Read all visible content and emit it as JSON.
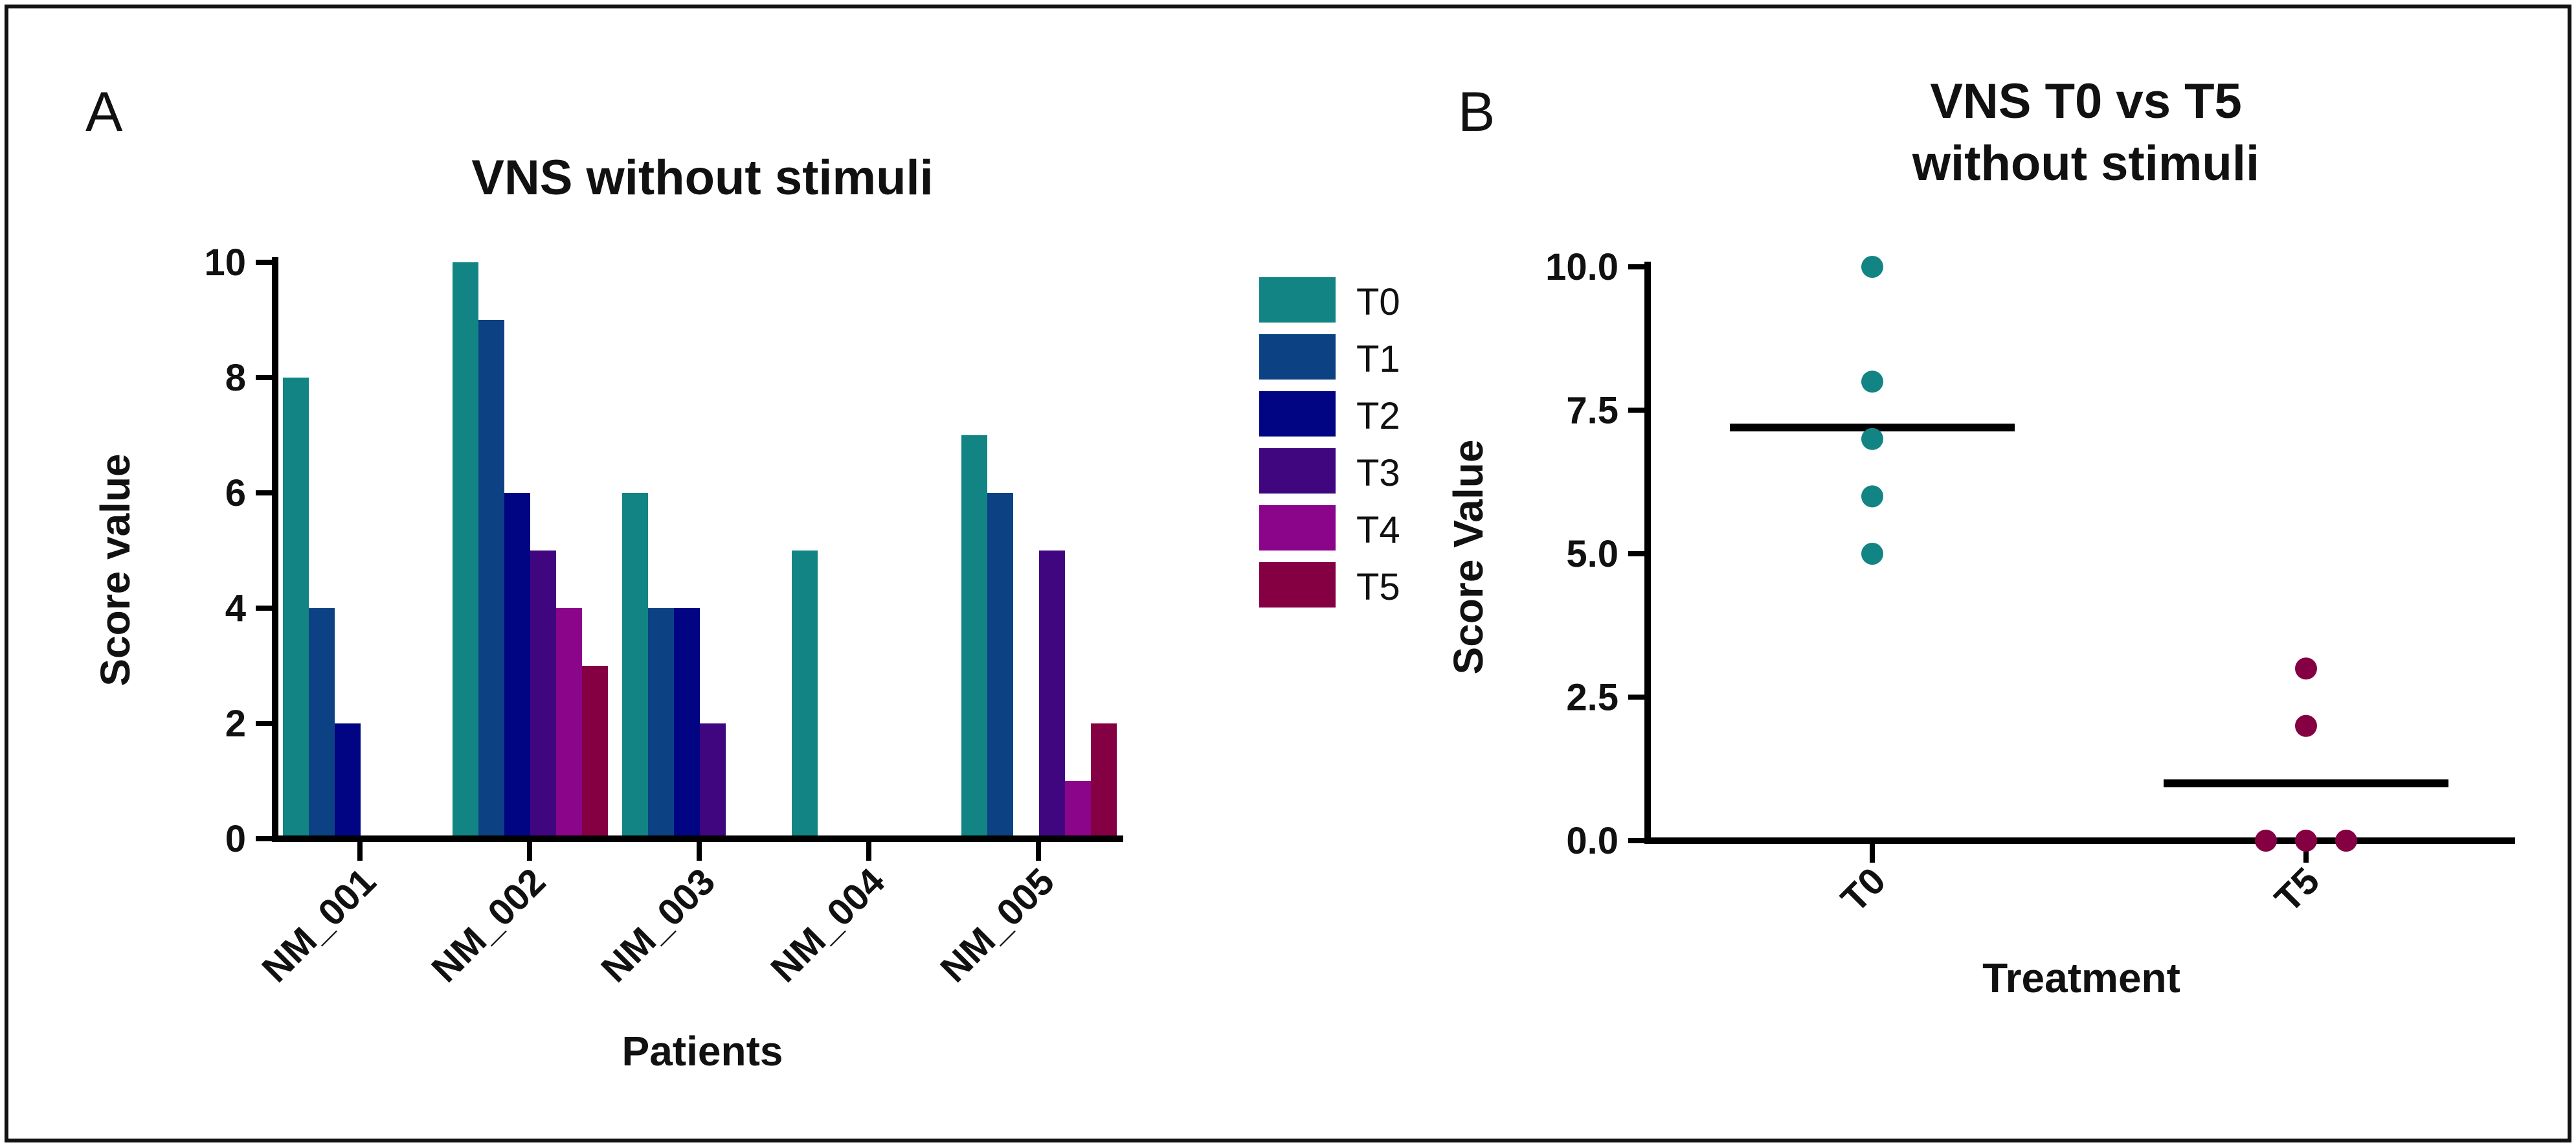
{
  "chart_data": [
    {
      "type": "bar",
      "panel_label": "A",
      "title": "VNS without stimuli",
      "xlabel": "Patients",
      "ylabel": "Score value",
      "ylim": [
        0,
        10
      ],
      "yticks": [
        0,
        2,
        4,
        6,
        8,
        10
      ],
      "ytick_labels": [
        "0",
        "2",
        "4",
        "6",
        "8",
        "10"
      ],
      "categories": [
        "NM_001",
        "NM_002",
        "NM_003",
        "NM_004",
        "NM_005"
      ],
      "series": [
        {
          "name": "T0",
          "color": "#128484",
          "values": [
            8,
            10,
            6,
            5,
            7
          ]
        },
        {
          "name": "T1",
          "color": "#0c4283",
          "values": [
            4,
            9,
            4,
            0,
            6
          ]
        },
        {
          "name": "T2",
          "color": "#010583",
          "values": [
            2,
            6,
            4,
            0,
            0
          ]
        },
        {
          "name": "T3",
          "color": "#40067f",
          "values": [
            0,
            5,
            2,
            0,
            5
          ]
        },
        {
          "name": "T4",
          "color": "#8a058a",
          "values": [
            0,
            4,
            0,
            0,
            1
          ]
        },
        {
          "name": "T5",
          "color": "#840042",
          "values": [
            0,
            3,
            0,
            0,
            2
          ]
        }
      ],
      "legend_position": "right"
    },
    {
      "type": "scatter",
      "panel_label": "B",
      "title_lines": [
        "VNS T0 vs T5",
        "without stimuli"
      ],
      "xlabel": "Treatment",
      "ylabel": "Score Value",
      "ylim": [
        0,
        10
      ],
      "yticks": [
        0,
        2.5,
        5,
        7.5,
        10
      ],
      "ytick_labels": [
        "0.0",
        "2.5",
        "5.0",
        "7.5",
        "10.0"
      ],
      "categories": [
        "T0",
        "T5"
      ],
      "groups": [
        {
          "name": "T0",
          "color": "#128484",
          "values": [
            10,
            8,
            7,
            6,
            5
          ],
          "median": 7.2
        },
        {
          "name": "T5",
          "color": "#840042",
          "values": [
            3,
            2,
            0,
            0,
            0
          ],
          "median": 1
        }
      ]
    }
  ]
}
